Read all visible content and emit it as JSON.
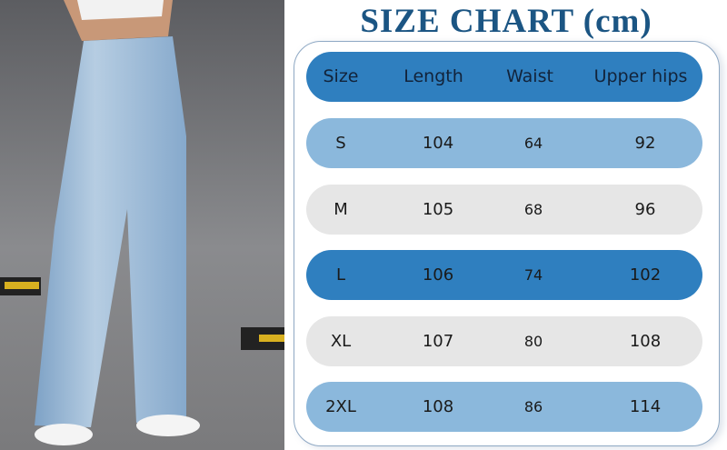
{
  "title": "SIZE CHART (cm)",
  "colors": {
    "title": "#1b5583",
    "header": "#2f7fbf",
    "light_blue": "#8bb8dc",
    "gray": "#e6e6e6"
  },
  "headers": [
    "Size",
    "Length",
    "Waist",
    "Upper hips"
  ],
  "rows": [
    {
      "size": "S",
      "length": "104",
      "waist": "64",
      "upper_hips": "92"
    },
    {
      "size": "M",
      "length": "105",
      "waist": "68",
      "upper_hips": "96"
    },
    {
      "size": "L",
      "length": "106",
      "waist": "74",
      "upper_hips": "102"
    },
    {
      "size": "XL",
      "length": "107",
      "waist": "80",
      "upper_hips": "108"
    },
    {
      "size": "2XL",
      "length": "108",
      "waist": "86",
      "upper_hips": "114"
    }
  ]
}
